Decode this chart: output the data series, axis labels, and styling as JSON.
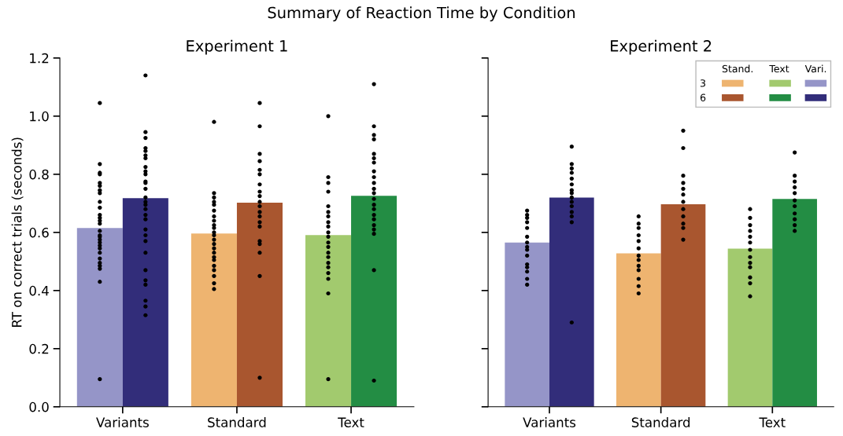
{
  "chart_data": [
    {
      "type": "bar",
      "title": "Experiment 1",
      "ylabel": "RT on correct trials (seconds)",
      "annotations": [
        "Summary of Reaction Time by Condition"
      ],
      "categories": [
        "Variants",
        "Standard",
        "Text"
      ],
      "ylim": [
        0,
        1.2
      ],
      "yticks": [
        {
          "value": 0,
          "label": "0.0"
        },
        0.2,
        0.4,
        0.6,
        0.8,
        {
          "value": 1,
          "label": "1.0"
        },
        1.2
      ],
      "grid": false,
      "series": [
        {
          "colors": [
            "#9595c8",
            "#eeb470",
            "#a2ca6e"
          ],
          "values": [
            0.615,
            0.596,
            0.591
          ]
        },
        {
          "colors": [
            "#322d7a",
            "#a9562f",
            "#238d44"
          ],
          "values": [
            0.718,
            0.702,
            0.726
          ]
        },
        {
          "type": "scatter",
          "color": "#000000",
          "x": [
            "Variants",
            "Variants",
            "Variants",
            "Variants",
            "Variants",
            "Variants",
            "Variants",
            "Variants",
            "Variants",
            "Variants",
            "Variants",
            "Variants",
            "Variants",
            "Variants",
            "Variants",
            "Variants",
            "Variants",
            "Variants",
            "Variants",
            "Variants",
            "Variants",
            "Variants",
            "Variants",
            "Variants",
            "Variants",
            "Variants",
            "Variants",
            "Variants",
            "Standard",
            "Standard",
            "Standard",
            "Standard",
            "Standard",
            "Standard",
            "Standard",
            "Standard",
            "Standard",
            "Standard",
            "Standard",
            "Standard",
            "Standard",
            "Standard",
            "Standard",
            "Standard",
            "Standard",
            "Standard",
            "Standard",
            "Standard",
            "Standard",
            "Standard",
            "Standard",
            "Text",
            "Text",
            "Text",
            "Text",
            "Text",
            "Text",
            "Text",
            "Text",
            "Text",
            "Text",
            "Text",
            "Text",
            "Text",
            "Text",
            "Text",
            "Text",
            "Text",
            "Text",
            "Text",
            "Text",
            "Text"
          ],
          "values": [
            1.045,
            0.835,
            0.805,
            0.8,
            0.77,
            0.76,
            0.745,
            0.735,
            0.705,
            0.685,
            0.66,
            0.65,
            0.64,
            0.63,
            0.605,
            0.59,
            0.585,
            0.575,
            0.565,
            0.555,
            0.545,
            0.53,
            0.51,
            0.495,
            0.485,
            0.475,
            0.43,
            0.095,
            0.98,
            0.735,
            0.72,
            0.705,
            0.695,
            0.675,
            0.655,
            0.64,
            0.625,
            0.615,
            0.6,
            0.59,
            0.575,
            0.56,
            0.545,
            0.53,
            0.515,
            0.505,
            0.485,
            0.47,
            0.45,
            0.425,
            0.405,
            1.0,
            0.79,
            0.77,
            0.74,
            0.69,
            0.67,
            0.655,
            0.635,
            0.62,
            0.6,
            0.585,
            0.565,
            0.55,
            0.53,
            0.515,
            0.495,
            0.48,
            0.46,
            0.44,
            0.39,
            0.095
          ]
        },
        {
          "type": "scatter",
          "color": "#000000",
          "x": [
            "Variants",
            "Variants",
            "Variants",
            "Variants",
            "Variants",
            "Variants",
            "Variants",
            "Variants",
            "Variants",
            "Variants",
            "Variants",
            "Variants",
            "Variants",
            "Variants",
            "Variants",
            "Variants",
            "Variants",
            "Variants",
            "Variants",
            "Variants",
            "Variants",
            "Variants",
            "Variants",
            "Variants",
            "Variants",
            "Variants",
            "Variants",
            "Variants",
            "Variants",
            "Standard",
            "Standard",
            "Standard",
            "Standard",
            "Standard",
            "Standard",
            "Standard",
            "Standard",
            "Standard",
            "Standard",
            "Standard",
            "Standard",
            "Standard",
            "Standard",
            "Standard",
            "Standard",
            "Standard",
            "Standard",
            "Standard",
            "Standard",
            "Text",
            "Text",
            "Text",
            "Text",
            "Text",
            "Text",
            "Text",
            "Text",
            "Text",
            "Text",
            "Text",
            "Text",
            "Text",
            "Text",
            "Text",
            "Text",
            "Text",
            "Text",
            "Text",
            "Text",
            "Text",
            "Text"
          ],
          "values": [
            1.14,
            0.945,
            0.925,
            0.89,
            0.88,
            0.865,
            0.855,
            0.825,
            0.81,
            0.8,
            0.775,
            0.77,
            0.75,
            0.72,
            0.705,
            0.695,
            0.68,
            0.66,
            0.645,
            0.61,
            0.59,
            0.57,
            0.53,
            0.47,
            0.435,
            0.42,
            0.365,
            0.345,
            0.315,
            1.045,
            0.965,
            0.87,
            0.845,
            0.815,
            0.8,
            0.765,
            0.74,
            0.725,
            0.705,
            0.69,
            0.67,
            0.655,
            0.635,
            0.62,
            0.57,
            0.56,
            0.53,
            0.45,
            0.1,
            1.11,
            0.965,
            0.935,
            0.92,
            0.87,
            0.855,
            0.84,
            0.81,
            0.79,
            0.77,
            0.75,
            0.735,
            0.715,
            0.695,
            0.68,
            0.66,
            0.645,
            0.625,
            0.61,
            0.595,
            0.47,
            0.09
          ]
        }
      ]
    },
    {
      "type": "bar",
      "title": "Experiment 2",
      "annotations": [
        "Stand.",
        "Text",
        "Vari."
      ],
      "categories": [
        "Variants",
        "Standard",
        "Text"
      ],
      "ylim": [
        0,
        1.2
      ],
      "yticks": [
        0,
        0.2,
        0.4,
        0.6,
        0.8,
        1,
        1.2
      ],
      "tick_labels": "x",
      "grid": false,
      "legend": "top right",
      "series": [
        {
          "name": "3",
          "colors": [
            "#9595c8",
            "#eeb470",
            "#a2ca6e"
          ],
          "values": [
            0.565,
            0.528,
            0.544
          ]
        },
        {
          "name": "6",
          "colors": [
            "#322d7a",
            "#a9562f",
            "#238d44"
          ],
          "values": [
            0.72,
            0.697,
            0.715
          ]
        },
        {
          "type": "scatter",
          "color": "#000000",
          "x": [
            "Variants",
            "Variants",
            "Variants",
            "Variants",
            "Variants",
            "Variants",
            "Variants",
            "Variants",
            "Variants",
            "Variants",
            "Variants",
            "Variants",
            "Variants",
            "Variants",
            "Variants",
            "Standard",
            "Standard",
            "Standard",
            "Standard",
            "Standard",
            "Standard",
            "Standard",
            "Standard",
            "Standard",
            "Standard",
            "Standard",
            "Standard",
            "Standard",
            "Text",
            "Text",
            "Text",
            "Text",
            "Text",
            "Text",
            "Text",
            "Text",
            "Text",
            "Text",
            "Text",
            "Text",
            "Text"
          ],
          "values": [
            0.675,
            0.66,
            0.65,
            0.635,
            0.615,
            0.585,
            0.565,
            0.55,
            0.54,
            0.52,
            0.49,
            0.48,
            0.465,
            0.44,
            0.42,
            0.655,
            0.63,
            0.615,
            0.59,
            0.57,
            0.545,
            0.52,
            0.505,
            0.485,
            0.47,
            0.44,
            0.415,
            0.39,
            0.68,
            0.65,
            0.625,
            0.605,
            0.585,
            0.565,
            0.54,
            0.515,
            0.495,
            0.48,
            0.445,
            0.425,
            0.38
          ]
        },
        {
          "type": "scatter",
          "color": "#000000",
          "x": [
            "Variants",
            "Variants",
            "Variants",
            "Variants",
            "Variants",
            "Variants",
            "Variants",
            "Variants",
            "Variants",
            "Variants",
            "Variants",
            "Variants",
            "Variants",
            "Variants",
            "Variants",
            "Standard",
            "Standard",
            "Standard",
            "Standard",
            "Standard",
            "Standard",
            "Standard",
            "Standard",
            "Standard",
            "Standard",
            "Standard",
            "Standard",
            "Text",
            "Text",
            "Text",
            "Text",
            "Text",
            "Text",
            "Text",
            "Text",
            "Text",
            "Text",
            "Text"
          ],
          "values": [
            0.895,
            0.835,
            0.82,
            0.805,
            0.785,
            0.765,
            0.745,
            0.735,
            0.72,
            0.705,
            0.69,
            0.67,
            0.655,
            0.635,
            0.29,
            0.95,
            0.89,
            0.795,
            0.77,
            0.75,
            0.73,
            0.705,
            0.68,
            0.655,
            0.63,
            0.615,
            0.575,
            0.875,
            0.795,
            0.775,
            0.755,
            0.735,
            0.71,
            0.69,
            0.665,
            0.645,
            0.625,
            0.605
          ]
        }
      ]
    }
  ]
}
